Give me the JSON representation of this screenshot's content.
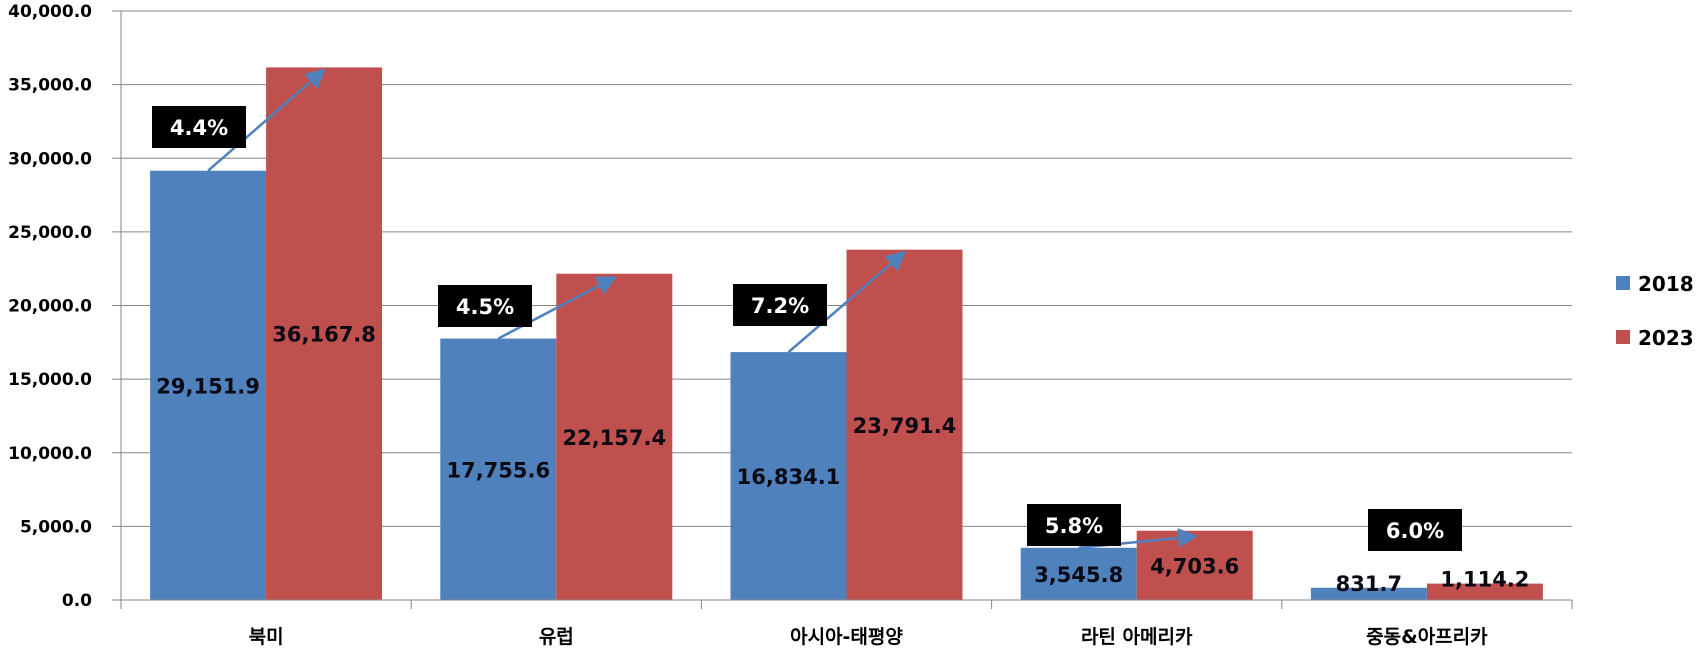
{
  "chart_data": {
    "type": "bar",
    "title": "",
    "xlabel": "",
    "ylabel": "",
    "ylim": [
      0,
      40000
    ],
    "yticks": [
      "0.0",
      "5,000.0",
      "10,000.0",
      "15,000.0",
      "20,000.0",
      "25,000.0",
      "30,000.0",
      "35,000.0",
      "40,000.0"
    ],
    "grid": true,
    "legend_position": "right",
    "categories": [
      "북미",
      "유럽",
      "아시아-태평양",
      "라틴 아메리카",
      "중동&아프리카"
    ],
    "series": [
      {
        "name": "2018",
        "color": "#4f81bd",
        "values": [
          29151.9,
          17755.6,
          16834.1,
          3545.8,
          831.7
        ],
        "labels": [
          "29,151.9",
          "17,755.6",
          "16,834.1",
          "3,545.8",
          "831.7"
        ]
      },
      {
        "name": "2023",
        "color": "#c0504d",
        "values": [
          36167.8,
          22157.4,
          23791.4,
          4703.6,
          1114.2
        ],
        "labels": [
          "36,167.8",
          "22,157.4",
          "23,791.4",
          "4,703.6",
          "1,114.2"
        ]
      }
    ],
    "annotations": {
      "type": "CAGR growth arrows with black label boxes",
      "values": [
        "4.4%",
        "4.5%",
        "7.2%",
        "5.8%",
        "6.0%"
      ],
      "arrow_color": "#4f81bd",
      "box_color": "#000000",
      "text_color": "#ffffff"
    }
  },
  "legend": {
    "items": [
      {
        "label": "2018",
        "color": "#4f81bd"
      },
      {
        "label": "2023",
        "color": "#c0504d"
      }
    ]
  }
}
